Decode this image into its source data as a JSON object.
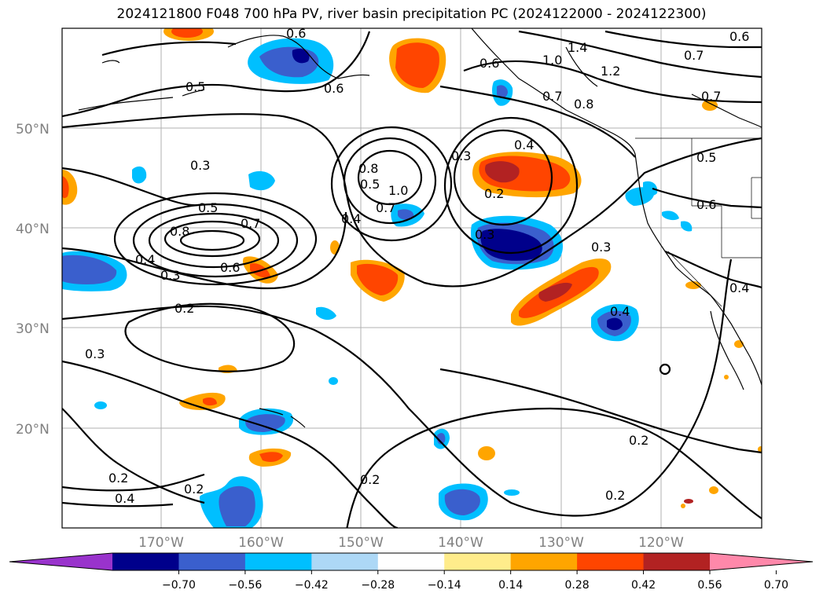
{
  "title": "2024121800 F048 700 hPa PV, river basin precipitation PC (2024122000 - 2024122300)",
  "lat_labels": [
    "50°N",
    "40°N",
    "30°N",
    "20°N"
  ],
  "lon_labels": [
    "170°W",
    "160°W",
    "150°W",
    "140°W",
    "130°W",
    "120°W"
  ],
  "colorbar": {
    "ticks": [
      "−0.70",
      "−0.56",
      "−0.42",
      "−0.28",
      "−0.14",
      "0.14",
      "0.28",
      "0.42",
      "0.56",
      "0.70"
    ],
    "colors": [
      "#9933cc",
      "#00008b",
      "#3a5fcd",
      "#00bfff",
      "#add8f6",
      "#ffffff",
      "#ffec8b",
      "#ffa500",
      "#ff4500",
      "#b22222",
      "#ff88aa"
    ]
  },
  "contour_labels": [
    "0.6",
    "0.5",
    "0.6",
    "0.6",
    "1.4",
    "1.2",
    "1.0",
    "0.7",
    "0.8",
    "0.7",
    "0.6",
    "0.3",
    "0.5",
    "0.8",
    "1.0",
    "0.7",
    "0.4",
    "0.3",
    "0.4",
    "0.2",
    "0.5",
    "0.8",
    "0.7",
    "0.6",
    "0.4",
    "0.3",
    "0.2",
    "0.3",
    "0.3",
    "0.4",
    "0.6",
    "0.5",
    "0.7",
    "0.2",
    "0.2",
    "0.3",
    "0.2",
    "0.2",
    "0.2",
    "0.4",
    "0.4"
  ]
}
